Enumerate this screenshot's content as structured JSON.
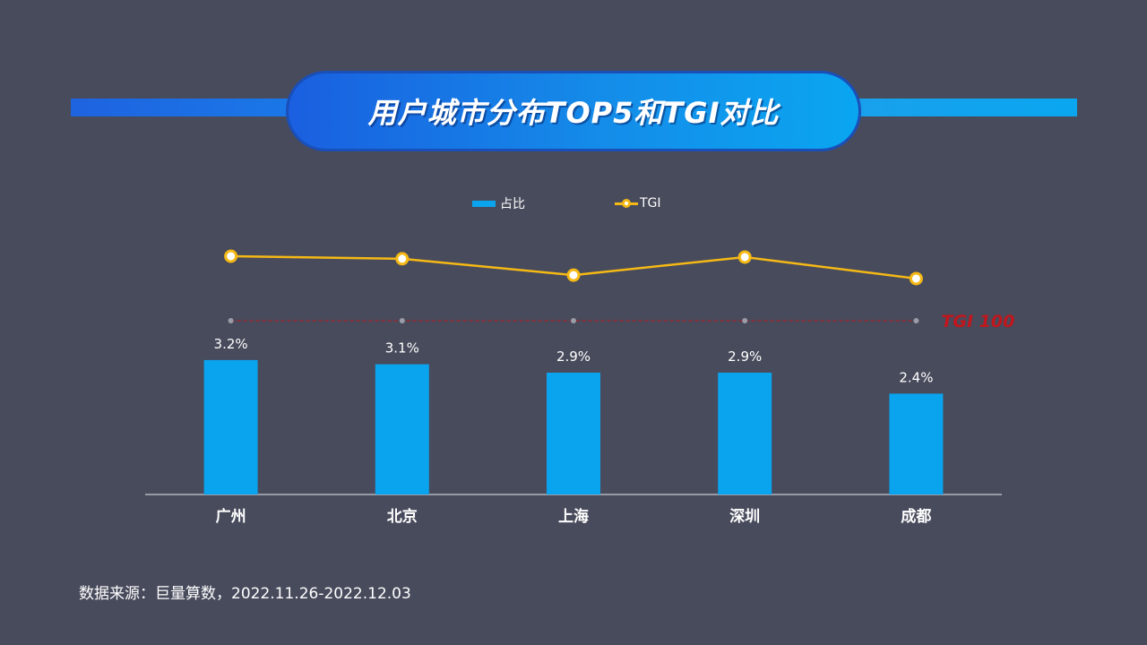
{
  "title": "用户城市分布TOP5和TGI对比",
  "legend": {
    "bar_label": "占比",
    "line_label": "TGI"
  },
  "chart_data": {
    "type": "bar",
    "categories": [
      "广州",
      "北京",
      "上海",
      "深圳",
      "成都"
    ],
    "series": [
      {
        "name": "占比",
        "type": "bar",
        "values": [
          3.2,
          3.1,
          2.9,
          2.9,
          2.4
        ],
        "data_labels": [
          "3.2%",
          "3.1%",
          "2.9%",
          "2.9%",
          "2.4%"
        ],
        "color": "#0aa3ee"
      },
      {
        "name": "TGI",
        "type": "line",
        "values": [
          175,
          172,
          153,
          174,
          149
        ],
        "color": "#f5b915"
      }
    ],
    "reference_line": {
      "label": "TGI 100",
      "value": 100,
      "color": "#c0161c"
    },
    "legend_position": "top-center",
    "grid": false
  },
  "footer": {
    "source": "数据来源：巨量算数，2022.11.26-2022.12.03"
  },
  "colors": {
    "background": "#484b5c",
    "bar": "#0aa3ee",
    "line": "#f5b915",
    "reference": "#c0161c",
    "title_gradient_start": "#1a5fe0",
    "title_gradient_end": "#0aa6f0"
  }
}
